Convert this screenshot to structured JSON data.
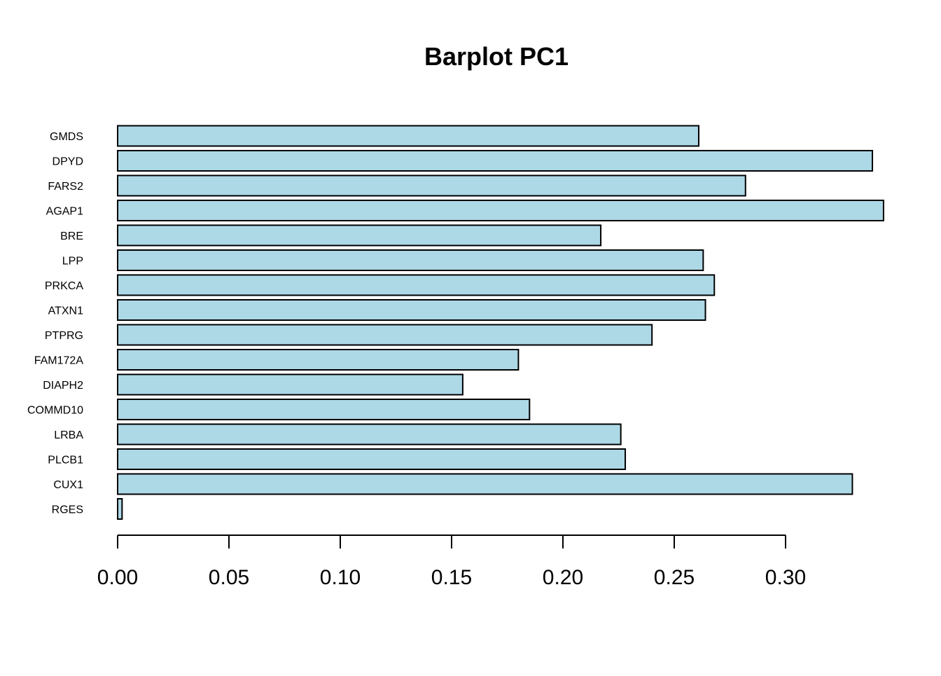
{
  "chart_data": {
    "type": "bar",
    "orientation": "horizontal",
    "title": "Barplot PC1",
    "xlabel": "",
    "ylabel": "",
    "categories": [
      "GMDS",
      "DPYD",
      "FARS2",
      "AGAP1",
      "BRE",
      "LPP",
      "PRKCA",
      "ATXN1",
      "PTPRG",
      "FAM172A",
      "DIAPH2",
      "COMMD10",
      "LRBA",
      "PLCB1",
      "CUX1",
      "RGES"
    ],
    "values": [
      0.261,
      0.339,
      0.282,
      0.344,
      0.217,
      0.263,
      0.268,
      0.264,
      0.24,
      0.18,
      0.155,
      0.185,
      0.226,
      0.228,
      0.33,
      0.002
    ],
    "xlim": [
      0,
      0.35
    ],
    "xticks": [
      0.0,
      0.05,
      0.1,
      0.15,
      0.2,
      0.25,
      0.3
    ],
    "xtick_labels": [
      "0.00",
      "0.05",
      "0.10",
      "0.15",
      "0.20",
      "0.25",
      "0.30"
    ],
    "bar_color": "#add8e6",
    "bar_border_color": "#000000",
    "grid": false,
    "legend": "none"
  }
}
